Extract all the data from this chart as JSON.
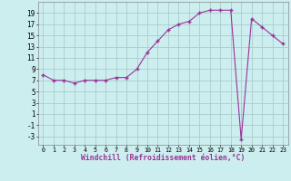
{
  "x": [
    0,
    1,
    2,
    3,
    4,
    5,
    6,
    7,
    8,
    9,
    10,
    11,
    12,
    13,
    14,
    15,
    16,
    17,
    18,
    19,
    20,
    21,
    22,
    23
  ],
  "y": [
    8.0,
    7.0,
    7.0,
    6.5,
    7.0,
    7.0,
    7.0,
    7.5,
    7.5,
    9.0,
    12.0,
    14.0,
    16.0,
    17.0,
    17.5,
    19.0,
    19.5,
    19.5,
    19.5,
    -3.5,
    18.0,
    16.5,
    15.0,
    13.5
  ],
  "line_color": "#993399",
  "marker": "+",
  "marker_color": "#993399",
  "bg_color": "#cceeee",
  "grid_color": "#aacccc",
  "xlabel": "Windchill (Refroidissement éolien,°C)",
  "xlabel_color": "#993399",
  "ylabel_ticks": [
    -3,
    -1,
    1,
    3,
    5,
    7,
    9,
    11,
    13,
    15,
    17,
    19
  ],
  "xtick_labels": [
    "0",
    "1",
    "2",
    "3",
    "4",
    "5",
    "6",
    "7",
    "8",
    "9",
    "10",
    "11",
    "12",
    "13",
    "14",
    "15",
    "16",
    "17",
    "18",
    "19",
    "20",
    "21",
    "22",
    "23"
  ],
  "ylim": [
    -4.5,
    21.0
  ],
  "xlim": [
    -0.5,
    23.5
  ]
}
